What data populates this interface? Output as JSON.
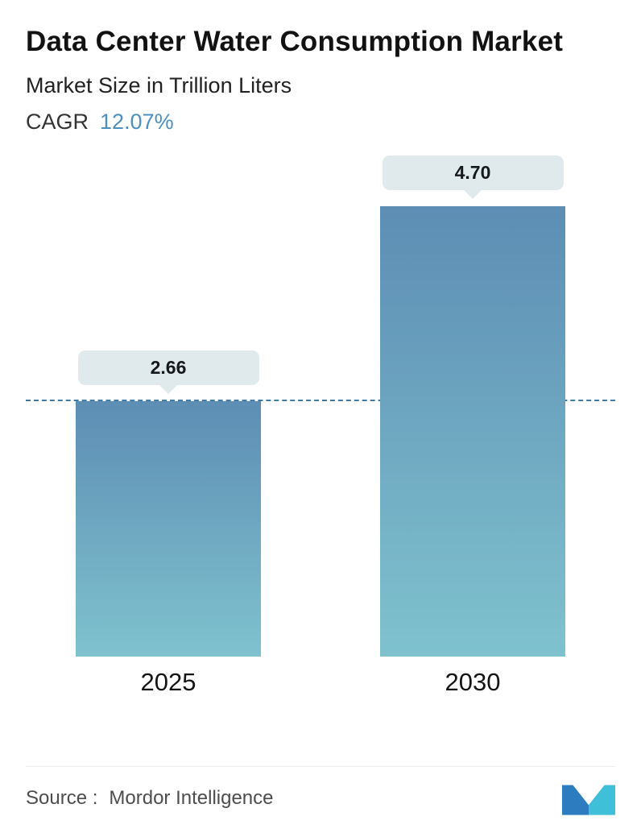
{
  "header": {
    "title": "Data Center Water Consumption Market",
    "subtitle": "Market Size in Trillion Liters",
    "cagr_label": "CAGR",
    "cagr_value": "12.07%"
  },
  "chart_data": {
    "type": "bar",
    "categories": [
      "2025",
      "2030"
    ],
    "values": [
      2.66,
      4.7
    ],
    "value_labels": [
      "2.66",
      "4.70"
    ],
    "title": "Data Center Water Consumption Market",
    "subtitle": "Market Size in Trillion Liters",
    "xlabel": "",
    "ylabel": "Market Size in Trillion Liters",
    "unit": "Trillion Liters",
    "ylim": [
      0,
      5.2
    ],
    "grid": false,
    "legend": "none",
    "reference_line": {
      "style": "dashed",
      "at_value": 2.66,
      "color": "#3f7ca6"
    },
    "bar_gradient": {
      "top": "#5d8db4",
      "bottom": "#7fc2ce"
    },
    "bubble_bg": "#e0eaec"
  },
  "footer": {
    "source_label": "Source :",
    "source_value": "Mordor Intelligence"
  },
  "colors": {
    "cagr_value_blue": "#4d8fc0",
    "logo_blue": "#2e7cc0",
    "logo_teal": "#3fc0d8"
  }
}
